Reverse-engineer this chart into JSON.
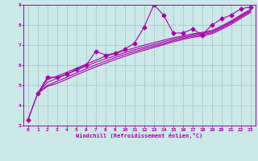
{
  "title": "",
  "xlabel": "Windchill (Refroidissement éolien,°C)",
  "ylabel": "",
  "background_color": "#cce8e8",
  "grid_color": "#aacccc",
  "line_color": "#aa00aa",
  "xlim": [
    -0.5,
    23.5
  ],
  "ylim": [
    3,
    9
  ],
  "xticks": [
    0,
    1,
    2,
    3,
    4,
    5,
    6,
    7,
    8,
    9,
    10,
    11,
    12,
    13,
    14,
    15,
    16,
    17,
    18,
    19,
    20,
    21,
    22,
    23
  ],
  "yticks": [
    3,
    4,
    5,
    6,
    7,
    8,
    9
  ],
  "series": [
    {
      "x": [
        0,
        1,
        2,
        3,
        4,
        5,
        6,
        7,
        8,
        9,
        10,
        11,
        12,
        13,
        14,
        15,
        16,
        17,
        18,
        19,
        20,
        21,
        22,
        23
      ],
      "y": [
        3.3,
        4.6,
        5.4,
        5.4,
        5.55,
        5.8,
        6.0,
        6.7,
        6.5,
        6.6,
        6.8,
        7.1,
        7.9,
        9.0,
        8.5,
        7.6,
        7.6,
        7.8,
        7.5,
        8.0,
        8.3,
        8.5,
        8.8,
        8.9
      ],
      "marker": "D",
      "markersize": 2.5,
      "linewidth": 0.8
    },
    {
      "x": [
        1,
        2,
        3,
        4,
        5,
        6,
        7,
        8,
        9,
        10,
        11,
        12,
        13,
        14,
        15,
        16,
        17,
        18,
        19,
        20,
        21,
        22,
        23
      ],
      "y": [
        4.6,
        5.3,
        5.45,
        5.65,
        5.85,
        6.05,
        6.25,
        6.45,
        6.58,
        6.72,
        6.86,
        7.0,
        7.12,
        7.24,
        7.36,
        7.46,
        7.56,
        7.63,
        7.72,
        7.95,
        8.2,
        8.5,
        8.78
      ],
      "marker": null,
      "linewidth": 0.8
    },
    {
      "x": [
        1,
        2,
        3,
        4,
        5,
        6,
        7,
        8,
        9,
        10,
        11,
        12,
        13,
        14,
        15,
        16,
        17,
        18,
        19,
        20,
        21,
        22,
        23
      ],
      "y": [
        4.6,
        5.15,
        5.35,
        5.55,
        5.75,
        5.95,
        6.15,
        6.32,
        6.47,
        6.62,
        6.77,
        6.9,
        7.03,
        7.16,
        7.29,
        7.4,
        7.5,
        7.58,
        7.68,
        7.9,
        8.15,
        8.45,
        8.72
      ],
      "marker": null,
      "linewidth": 0.8
    },
    {
      "x": [
        1,
        2,
        3,
        4,
        5,
        6,
        7,
        8,
        9,
        10,
        11,
        12,
        13,
        14,
        15,
        16,
        17,
        18,
        19,
        20,
        21,
        22,
        23
      ],
      "y": [
        4.6,
        5.0,
        5.2,
        5.4,
        5.62,
        5.82,
        6.02,
        6.2,
        6.38,
        6.53,
        6.68,
        6.82,
        6.95,
        7.08,
        7.22,
        7.34,
        7.44,
        7.52,
        7.62,
        7.85,
        8.1,
        8.4,
        8.68
      ],
      "marker": null,
      "linewidth": 0.8
    },
    {
      "x": [
        0,
        1,
        2,
        3,
        4,
        5,
        6,
        7,
        8,
        9,
        10,
        11,
        12,
        13,
        14,
        15,
        16,
        17,
        18,
        19,
        20,
        21,
        22,
        23
      ],
      "y": [
        3.3,
        4.6,
        4.95,
        5.1,
        5.3,
        5.52,
        5.72,
        5.92,
        6.1,
        6.28,
        6.44,
        6.6,
        6.74,
        6.88,
        7.02,
        7.16,
        7.28,
        7.38,
        7.46,
        7.56,
        7.78,
        8.03,
        8.33,
        8.62
      ],
      "marker": null,
      "linewidth": 0.8
    }
  ]
}
